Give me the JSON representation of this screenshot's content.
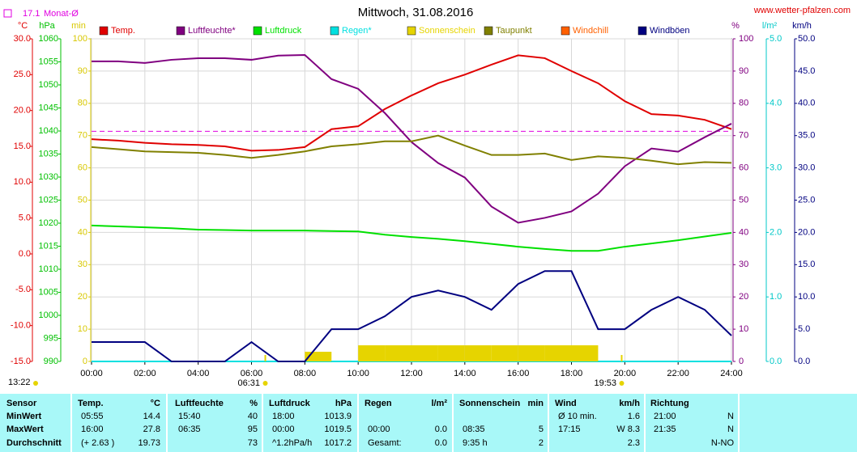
{
  "chart_data": {
    "type": "line",
    "title": "Mittwoch, 31.08.2016",
    "source": "www.wetter-pfalzen.com",
    "monthly_average": {
      "label": "Monat-Ø",
      "value": 17.1,
      "value_label": "17.1",
      "axis": "°C",
      "color": "#e000e0"
    },
    "moon": {
      "label": "13:22"
    },
    "sunrise": {
      "label": "06:31",
      "x": 6.517
    },
    "sunset": {
      "label": "19:53",
      "x": 19.883
    },
    "grid": true,
    "xlim": [
      0,
      24
    ],
    "xticks": [
      {
        "value": 0,
        "label": "00:00"
      },
      {
        "value": 2,
        "label": "02:00"
      },
      {
        "value": 4,
        "label": "04:00"
      },
      {
        "value": 6,
        "label": "06:00"
      },
      {
        "value": 8,
        "label": "08:00"
      },
      {
        "value": 10,
        "label": "10:00"
      },
      {
        "value": 12,
        "label": "12:00"
      },
      {
        "value": 14,
        "label": "14:00"
      },
      {
        "value": 16,
        "label": "16:00"
      },
      {
        "value": 18,
        "label": "18:00"
      },
      {
        "value": 20,
        "label": "20:00"
      },
      {
        "value": 22,
        "label": "22:00"
      },
      {
        "value": 24,
        "label": "24:00"
      }
    ],
    "axes": [
      {
        "unit": "°C",
        "color": "#e00000",
        "lim": [
          -15,
          30
        ],
        "ticks": [
          {
            "value": -15,
            "label": "-15.0"
          },
          {
            "value": -10,
            "label": "-10.0"
          },
          {
            "value": -5,
            "label": "-5.0"
          },
          {
            "value": 0,
            "label": "0.0"
          },
          {
            "value": 5,
            "label": "5.0"
          },
          {
            "value": 10,
            "label": "10.0"
          },
          {
            "value": 15,
            "label": "15.0"
          },
          {
            "value": 20,
            "label": "20.0"
          },
          {
            "value": 25,
            "label": "25.0"
          },
          {
            "value": 30,
            "label": "30.0"
          }
        ]
      },
      {
        "unit": "hPa",
        "color": "#00c000",
        "lim": [
          990,
          1060
        ],
        "ticks": [
          990,
          995,
          1000,
          1005,
          1010,
          1015,
          1020,
          1025,
          1030,
          1035,
          1040,
          1045,
          1050,
          1055,
          1060
        ]
      },
      {
        "unit": "min",
        "color": "#d8c800",
        "lim": [
          0,
          100
        ],
        "ticks": [
          0,
          10,
          20,
          30,
          40,
          50,
          60,
          70,
          80,
          90,
          100
        ]
      },
      {
        "unit": "%",
        "color": "#800080",
        "lim": [
          0,
          100
        ],
        "ticks": [
          0,
          10,
          20,
          30,
          40,
          50,
          60,
          70,
          80,
          90,
          100
        ]
      },
      {
        "unit": "l/m²",
        "color": "#00c8c8",
        "lim": [
          0,
          5
        ],
        "ticks": [
          {
            "value": 0,
            "label": "0.0"
          },
          {
            "value": 1,
            "label": "1.0"
          },
          {
            "value": 2,
            "label": "2.0"
          },
          {
            "value": 3,
            "label": "3.0"
          },
          {
            "value": 4,
            "label": "4.0"
          },
          {
            "value": 5,
            "label": "5.0"
          }
        ]
      },
      {
        "unit": "km/h",
        "color": "#000080",
        "lim": [
          0,
          50
        ],
        "ticks": [
          {
            "value": 0,
            "label": "0.0"
          },
          {
            "value": 5,
            "label": "5.0"
          },
          {
            "value": 10,
            "label": "10.0"
          },
          {
            "value": 15,
            "label": "15.0"
          },
          {
            "value": 20,
            "label": "20.0"
          },
          {
            "value": 25,
            "label": "25.0"
          },
          {
            "value": 30,
            "label": "30.0"
          },
          {
            "value": 35,
            "label": "35.0"
          },
          {
            "value": 40,
            "label": "40.0"
          },
          {
            "value": 45,
            "label": "45.0"
          },
          {
            "value": 50,
            "label": "50.0"
          }
        ]
      }
    ],
    "x": [
      0,
      1,
      2,
      3,
      4,
      5,
      6,
      7,
      8,
      9,
      10,
      11,
      12,
      13,
      14,
      15,
      16,
      17,
      18,
      19,
      20,
      21,
      22,
      23,
      24
    ],
    "series": [
      {
        "name": "Temp.",
        "color": "#e00000",
        "axis": "°C",
        "values": [
          16.0,
          15.8,
          15.5,
          15.3,
          15.2,
          15.0,
          14.4,
          14.5,
          14.9,
          17.4,
          17.8,
          20.2,
          22.1,
          23.8,
          25.0,
          26.4,
          27.7,
          27.3,
          25.5,
          23.8,
          21.3,
          19.5,
          19.3,
          18.7,
          17.4
        ]
      },
      {
        "name": "Luftfeuchte*",
        "color": "#800080",
        "axis": "%",
        "values": [
          93,
          93,
          92.5,
          93.5,
          94,
          94,
          93.5,
          94.8,
          95,
          87.5,
          84.5,
          77,
          68,
          61.5,
          57,
          48,
          43,
          44.5,
          46.5,
          52,
          60.5,
          66,
          65,
          69.5,
          73.7
        ]
      },
      {
        "name": "Luftdruck",
        "color": "#00e000",
        "axis": "hPa",
        "values": [
          1019.5,
          1019.3,
          1019.1,
          1018.9,
          1018.6,
          1018.5,
          1018.4,
          1018.4,
          1018.4,
          1018.3,
          1018.2,
          1017.5,
          1017.0,
          1016.6,
          1016.1,
          1015.5,
          1014.9,
          1014.4,
          1014.0,
          1014.0,
          1014.9,
          1015.6,
          1016.3,
          1017.1,
          1017.9
        ]
      },
      {
        "name": "Regen*",
        "color": "#00e0e0",
        "axis": "l/m²",
        "values": [
          0,
          0,
          0,
          0,
          0,
          0,
          0,
          0,
          0,
          0,
          0,
          0,
          0,
          0,
          0,
          0,
          0,
          0,
          0,
          0,
          0,
          0,
          0,
          0,
          0
        ]
      },
      {
        "name": "Sonnenschein",
        "color": "#e6d400",
        "axis": "min",
        "type": "bar",
        "values": [
          0,
          0,
          0,
          0,
          0,
          0,
          0,
          0,
          3,
          0,
          5,
          5,
          5,
          5,
          5,
          5,
          5,
          5,
          5,
          0,
          0,
          0,
          0,
          0,
          0
        ]
      },
      {
        "name": "Taupunkt",
        "color": "#808000",
        "axis": "°C",
        "values": [
          14.9,
          14.6,
          14.3,
          14.2,
          14.1,
          13.8,
          13.4,
          13.8,
          14.3,
          15.0,
          15.3,
          15.7,
          15.7,
          16.5,
          15.1,
          13.8,
          13.8,
          14.0,
          13.1,
          13.6,
          13.4,
          13.0,
          12.5,
          12.8,
          12.7
        ]
      },
      {
        "name": "Windchill",
        "color": "#ff6000",
        "axis": "°C"
      },
      {
        "name": "Windböen",
        "color": "#000080",
        "axis": "km/h",
        "values": [
          3,
          3,
          3,
          0,
          0,
          0,
          3,
          0,
          0,
          5,
          5,
          7,
          10,
          11,
          10,
          8,
          12,
          14,
          14,
          5,
          5,
          8,
          10,
          8,
          4
        ]
      }
    ]
  },
  "table": {
    "header": {
      "label": "Sensor",
      "cells": [
        {
          "left": "Temp.",
          "right": "°C"
        },
        {
          "left": "Luftfeuchte",
          "right": "%"
        },
        {
          "left": "Luftdruck",
          "right": "hPa"
        },
        {
          "left": "Regen",
          "right": "l/m²"
        },
        {
          "left": "Sonnenschein",
          "right": "min"
        },
        {
          "left": "Wind",
          "right": "km/h"
        },
        {
          "left": "Richtung"
        }
      ]
    },
    "rows": [
      {
        "label": "MinWert",
        "cells": [
          {
            "left": "05:55",
            "right": "14.4"
          },
          {
            "left": "15:40",
            "right": "40"
          },
          {
            "left": "18:00",
            "right": "1013.9"
          },
          {},
          {},
          {
            "left": "Ø 10 min.",
            "right": "1.6"
          },
          {
            "left": "21:00",
            "right": "N"
          }
        ]
      },
      {
        "label": "MaxWert",
        "cells": [
          {
            "left": "16:00",
            "right": "27.8"
          },
          {
            "left": "06:35",
            "right": "95"
          },
          {
            "left": "00:00",
            "right": "1019.5"
          },
          {
            "left": "00:00",
            "right": "0.0"
          },
          {
            "left": "08:35",
            "right": "5"
          },
          {
            "left": "17:15",
            "right": "W 8.3"
          },
          {
            "left": "21:35",
            "right": "N"
          }
        ]
      },
      {
        "label": "Durchschnitt",
        "cells": [
          {
            "left": "(+ 2.63 )",
            "right": "19.73"
          },
          {
            "right": "73"
          },
          {
            "left": "^1.2hPa/h",
            "right": "1017.2"
          },
          {
            "left": "Gesamt:",
            "right": "0.0"
          },
          {
            "left": "9:35 h",
            "right": "2"
          },
          {
            "right": "2.3"
          },
          {
            "right": "N-NO"
          }
        ]
      }
    ]
  }
}
